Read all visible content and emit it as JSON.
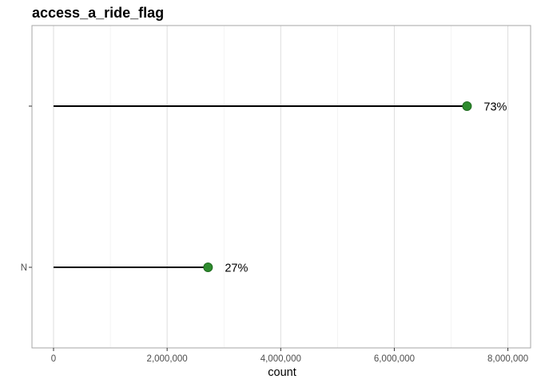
{
  "chart_data": {
    "type": "lollipop",
    "title": "access_a_ride_flag",
    "xlabel": "count",
    "ylabel": "",
    "xlim": [
      -380000,
      8400000
    ],
    "x_ticks": [
      0,
      2000000,
      4000000,
      6000000,
      8000000
    ],
    "x_tick_labels": [
      "0",
      "2,000,000",
      "4,000,000",
      "6,000,000",
      "8,000,000"
    ],
    "categories": [
      "",
      "N"
    ],
    "values": [
      7280000,
      2720000
    ],
    "labels": [
      "73%",
      "27%"
    ],
    "point_color": "#2e8b2e",
    "point_outline": "#1f6b1f",
    "stem_color": "#000000",
    "grid": true,
    "panel_border_color": "#a6a6a6",
    "grid_color": "#dedede"
  }
}
